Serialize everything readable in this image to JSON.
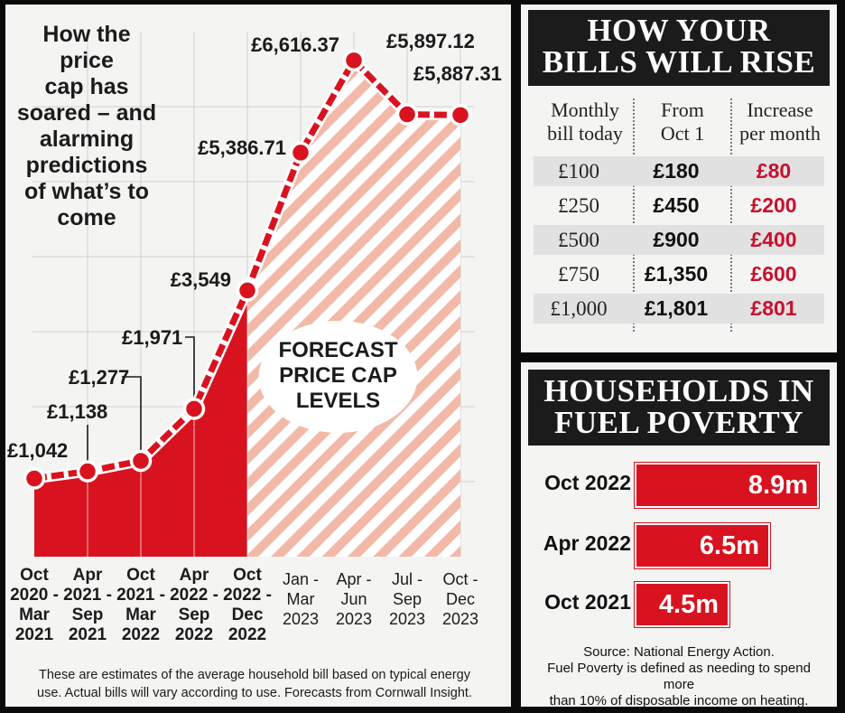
{
  "chart_data": {
    "type": "line",
    "title": "How the price cap has soared – and alarming predictions of what’s to come",
    "categories": [
      "Oct 2020 - Mar 2021",
      "Apr 2021 - Sep 2021",
      "Oct 2021 - Mar 2022",
      "Apr 2022 - Sep 2022",
      "Oct 2022 - Dec 2022",
      "Jan - Mar 2023",
      "Apr - Jun 2023",
      "Jul - Sep 2023",
      "Oct - Dec 2023"
    ],
    "category_lines": [
      [
        "Oct",
        "2020 -",
        "Mar",
        "2021"
      ],
      [
        "Apr",
        "2021 -",
        "Sep",
        "2021"
      ],
      [
        "Oct",
        "2021 -",
        "Mar",
        "2022"
      ],
      [
        "Apr",
        "2022 -",
        "Sep",
        "2022"
      ],
      [
        "Oct",
        "2022 -",
        "Dec",
        "2022"
      ],
      [
        "Jan -",
        "Mar",
        "2023"
      ],
      [
        "Apr -",
        "Jun",
        "2023"
      ],
      [
        "Jul -",
        "Sep",
        "2023"
      ],
      [
        "Oct -",
        "Dec",
        "2023"
      ]
    ],
    "values": [
      1042,
      1138,
      1277,
      1971,
      3549,
      5386.71,
      6616.37,
      5897.12,
      5887.31
    ],
    "value_labels": [
      "£1,042",
      "£1,138",
      "£1,277",
      "£1,971",
      "£3,549",
      "£5,386.71",
      "£6,616.37",
      "£5,897.12",
      "£5,887.31"
    ],
    "forecast_from_index": 4,
    "forecast_label": [
      "FORECAST",
      "PRICE CAP",
      "LEVELS"
    ],
    "ylim": [
      0,
      7000
    ],
    "grid": true,
    "note": "These are estimates of the average household bill based on typical energy use. Actual bills will vary according to use. Forecasts from Cornwall Insight."
  },
  "title_lines": [
    "How the",
    "price",
    "cap has",
    "soared – and",
    "alarming",
    "predictions",
    "of what’s to",
    "come"
  ],
  "note_lines": [
    "These are estimates of the average household bill based on typical energy",
    "use. Actual bills will vary according to use. Forecasts from Cornwall Insight."
  ],
  "colors": {
    "accent": "#d8131f",
    "stripe": "#f2b9a8",
    "dark": "#1b1b1b"
  },
  "bills": {
    "title_lines": [
      "HOW YOUR",
      "BILLS WILL RISE"
    ],
    "headers": [
      [
        "Monthly",
        "bill today"
      ],
      [
        "From",
        "Oct 1"
      ],
      [
        "Increase",
        "per month"
      ]
    ],
    "rows": [
      [
        "£100",
        "£180",
        "£80"
      ],
      [
        "£250",
        "£450",
        "£200"
      ],
      [
        "£500",
        "£900",
        "£400"
      ],
      [
        "£750",
        "£1,350",
        "£600"
      ],
      [
        "£1,000",
        "£1,801",
        "£801"
      ]
    ]
  },
  "poverty": {
    "title_lines": [
      "HOUSEHOLDS IN",
      "FUEL POVERTY"
    ],
    "rows": [
      {
        "label": "Oct 2022",
        "value": 8.9,
        "display": "8.9m"
      },
      {
        "label": "Apr 2022",
        "value": 6.5,
        "display": "6.5m"
      },
      {
        "label": "Oct 2021",
        "value": 4.5,
        "display": "4.5m"
      }
    ],
    "source_lines": [
      "Source: National Energy Action.",
      "Fuel Poverty is defined as needing to spend more",
      "than 10% of disposable income on heating."
    ]
  }
}
